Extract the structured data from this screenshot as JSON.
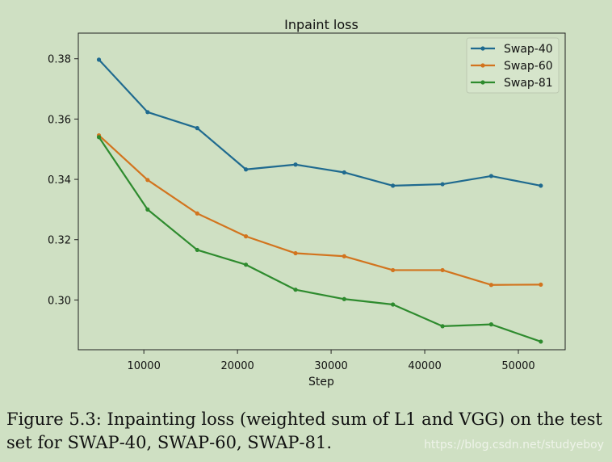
{
  "chart_data": {
    "type": "line",
    "title": "Inpaint loss",
    "xlabel": "Step",
    "ylabel": "",
    "xlim": [
      3000,
      55000
    ],
    "ylim": [
      0.2835,
      0.3885
    ],
    "xticks": [
      10000,
      20000,
      30000,
      40000,
      50000
    ],
    "xtick_labels": [
      "10000",
      "20000",
      "30000",
      "40000",
      "50000"
    ],
    "yticks": [
      0.3,
      0.32,
      0.34,
      0.36,
      0.38
    ],
    "ytick_labels": [
      "0.30",
      "0.32",
      "0.34",
      "0.36",
      "0.38"
    ],
    "grid": false,
    "legend_position": "top-right",
    "x": [
      5200,
      10400,
      15700,
      20900,
      26200,
      31400,
      36600,
      41900,
      47100,
      52400
    ],
    "series": [
      {
        "name": "Swap-40",
        "color": "#1f6a8f",
        "values": [
          0.3797,
          0.3623,
          0.357,
          0.3433,
          0.3449,
          0.3423,
          0.3379,
          0.3384,
          0.3411,
          0.3379
        ]
      },
      {
        "name": "Swap-60",
        "color": "#d2741e",
        "values": [
          0.3546,
          0.3398,
          0.3287,
          0.3211,
          0.3155,
          0.3145,
          0.3099,
          0.3099,
          0.305,
          0.3051
        ]
      },
      {
        "name": "Swap-81",
        "color": "#2e8b2e",
        "values": [
          0.354,
          0.33,
          0.3166,
          0.3117,
          0.3034,
          0.3003,
          0.2985,
          0.2913,
          0.2919,
          0.2862
        ]
      }
    ]
  },
  "caption": {
    "prefix": "Figure 5.3: Inpainting loss (weighted sum of L1 and VGG) on the test set for ",
    "sep1": ", ",
    "sep2": ", ",
    "suffix": ".",
    "models": [
      {
        "first": "S",
        "rest": "WAP",
        "num": "-40"
      },
      {
        "first": "S",
        "rest": "WAP",
        "num": "-60"
      },
      {
        "first": "S",
        "rest": "WAP",
        "num": "-81"
      }
    ]
  },
  "watermark": "https://blog.csdn.net/studyeboy"
}
